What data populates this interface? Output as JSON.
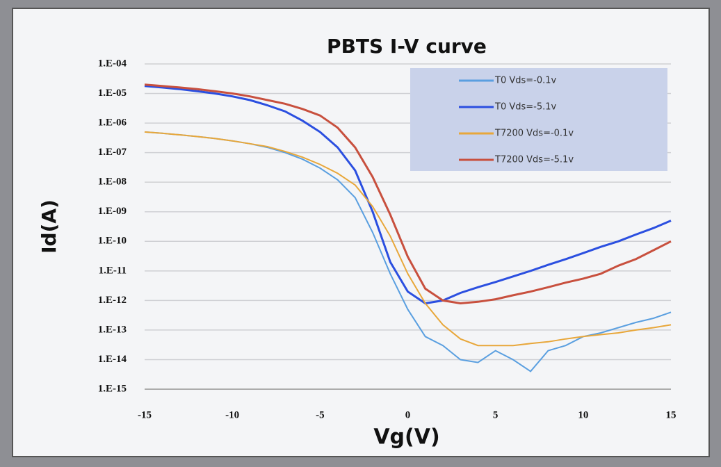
{
  "chart_data": {
    "type": "line",
    "title": "PBTS I-V curve",
    "x_label": "Vg(V)",
    "y_label": "Id(A)",
    "log_y": true,
    "grid": true,
    "legend": "upper right",
    "xlim": [
      -15,
      15
    ],
    "xticks": [
      -15,
      -10,
      -5,
      0,
      5,
      10,
      15
    ],
    "ylim": [
      1e-15,
      0.0001
    ],
    "yticks": [
      {
        "value": 1e-15,
        "label": "1.E-15"
      },
      {
        "value": 1e-14,
        "label": "1.E-14"
      },
      {
        "value": 1e-13,
        "label": "1.E-13"
      },
      {
        "value": 1e-12,
        "label": "1.E-12"
      },
      {
        "value": 1e-11,
        "label": "1.E-11"
      },
      {
        "value": 1e-10,
        "label": "1.E-10"
      },
      {
        "value": 1e-09,
        "label": "1.E-09"
      },
      {
        "value": 1e-08,
        "label": "1.E-08"
      },
      {
        "value": 1e-07,
        "label": "1.E-07"
      },
      {
        "value": 1e-06,
        "label": "1.E-06"
      },
      {
        "value": 1e-05,
        "label": "1.E-05"
      },
      {
        "value": 0.0001,
        "label": "1.E-04"
      }
    ],
    "x": [
      -15,
      -14,
      -13,
      -12,
      -11,
      -10,
      -9,
      -8,
      -7,
      -6,
      -5,
      -4,
      -3,
      -2,
      -1,
      0,
      1,
      2,
      3,
      4,
      5,
      6,
      7,
      8,
      9,
      10,
      11,
      12,
      13,
      14,
      15
    ],
    "series": [
      {
        "name": "T0 Vds=-0.1v",
        "color": "#5a9fe0",
        "values": [
          5e-07,
          4.5e-07,
          4e-07,
          3.5e-07,
          3e-07,
          2.5e-07,
          2e-07,
          1.5e-07,
          1e-07,
          6e-08,
          3e-08,
          1.2e-08,
          3e-09,
          2e-10,
          8e-12,
          5e-13,
          6e-14,
          3e-14,
          1e-14,
          8e-15,
          2e-14,
          1e-14,
          4e-15,
          2e-14,
          3e-14,
          6e-14,
          8e-14,
          1.2e-13,
          1.8e-13,
          2.5e-13,
          4e-13
        ]
      },
      {
        "name": "T0 Vds=-5.1v",
        "color": "#2b4fe0",
        "values": [
          1.8e-05,
          1.6e-05,
          1.4e-05,
          1.2e-05,
          1e-05,
          8e-06,
          6e-06,
          4e-06,
          2.5e-06,
          1.2e-06,
          5e-07,
          1.5e-07,
          2.5e-08,
          1e-09,
          2e-11,
          2e-12,
          8e-13,
          1e-12,
          1.8e-12,
          2.8e-12,
          4.2e-12,
          6.5e-12,
          1e-11,
          1.6e-11,
          2.5e-11,
          4e-11,
          6.5e-11,
          1e-10,
          1.7e-10,
          2.8e-10,
          5e-10
        ]
      },
      {
        "name": "T7200 Vds=-0.1v",
        "color": "#e8a73a",
        "values": [
          5e-07,
          4.5e-07,
          4e-07,
          3.5e-07,
          3e-07,
          2.5e-07,
          2e-07,
          1.6e-07,
          1.1e-07,
          7e-08,
          4e-08,
          2e-08,
          8e-09,
          1.5e-09,
          1.5e-10,
          8e-12,
          8e-13,
          1.5e-13,
          5e-14,
          3e-14,
          3e-14,
          3e-14,
          3.5e-14,
          4e-14,
          5e-14,
          6e-14,
          7e-14,
          8e-14,
          1e-13,
          1.2e-13,
          1.5e-13
        ]
      },
      {
        "name": "T7200 Vds=-5.1v",
        "color": "#c8503e",
        "values": [
          2e-05,
          1.8e-05,
          1.6e-05,
          1.4e-05,
          1.2e-05,
          1e-05,
          8e-06,
          6e-06,
          4.5e-06,
          3e-06,
          1.8e-06,
          7e-07,
          1.5e-07,
          1.5e-08,
          8e-10,
          3e-11,
          2.5e-12,
          1e-12,
          8e-13,
          9e-13,
          1.1e-12,
          1.5e-12,
          2e-12,
          2.8e-12,
          4e-12,
          5.5e-12,
          8e-12,
          1.5e-11,
          2.5e-11,
          5e-11,
          1e-10
        ]
      }
    ]
  }
}
